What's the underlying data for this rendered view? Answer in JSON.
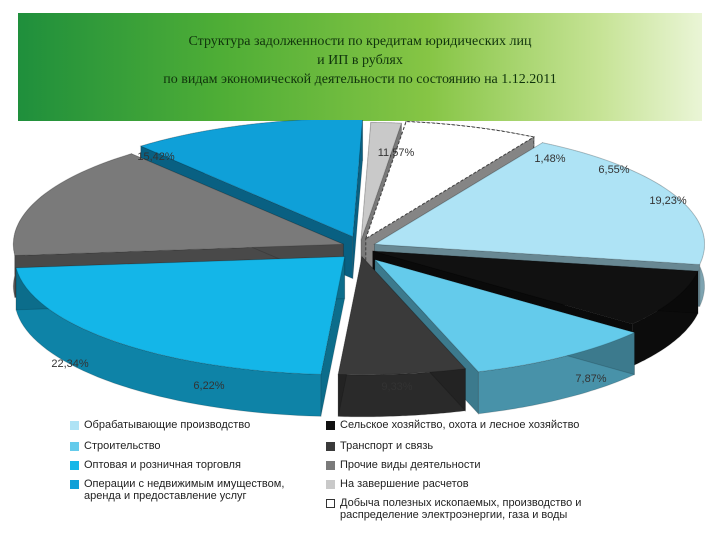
{
  "title_lines": [
    "Структура задолженности по кредитам  юридических  лиц",
    "и ИП в рублях",
    "по видам экономической деятельности по состоянию на 1.12.2011"
  ],
  "colors": {
    "banner": [
      "#1f8f3c",
      "#86c545",
      "#eaf5d6"
    ],
    "black": "#111111",
    "dark_gray": "#3a3a3a",
    "gray": "#7a7a7a",
    "white": "#ffffff",
    "light_gray": "#c9c9c9",
    "light_blue": "#aee3f5",
    "sky_blue": "#64cbeb",
    "cyan": "#14b6e8",
    "blue": "#0fa0d8"
  },
  "chart_data": {
    "type": "pie",
    "style": "3d-exploded",
    "legend_position": "bottom",
    "slices": [
      {
        "label": "Обрабатывающие производство",
        "value": 19.23,
        "value_label": "19,23%",
        "color": "#aee3f5"
      },
      {
        "label": "Сельское хозяйство, охота и лесное хозяйство",
        "value": 7.87,
        "value_label": "7,87%",
        "color": "#111111"
      },
      {
        "label": "Строительство",
        "value": 9.33,
        "value_label": "9,33%",
        "color": "#64cbeb"
      },
      {
        "label": "Транспорт и связь",
        "value": 6.22,
        "value_label": "6,22%",
        "color": "#3a3a3a"
      },
      {
        "label": "Оптовая и розничная торговля",
        "value": 22.34,
        "value_label": "22,34%",
        "color": "#14b6e8"
      },
      {
        "label": "Прочие виды деятельности",
        "value": 15.42,
        "value_label": "15,42%",
        "color": "#7a7a7a"
      },
      {
        "label": "Операции с недвижимым имуществом, аренда и предоставление услуг",
        "value": 11.57,
        "value_label": "11,57%",
        "color": "#0fa0d8"
      },
      {
        "label": "На завершение расчетов",
        "value": 1.48,
        "value_label": "1,48%",
        "color": "#c9c9c9"
      },
      {
        "label": "Добыча полезных ископаемых, производство и распределение электроэнергии, газа и воды",
        "value": 6.55,
        "value_label": "6,55%",
        "color": "#ffffff"
      }
    ]
  },
  "legend": {
    "left": [
      {
        "text": "Обрабатывающие производство",
        "color": "#aee3f5"
      },
      {
        "text": "Строительство",
        "color": "#64cbeb"
      },
      {
        "text": "Оптовая и розничная торговля",
        "color": "#14b6e8"
      },
      {
        "text": "Операции с недвижимым имуществом, аренда и предоставление услуг",
        "color": "#0fa0d8"
      }
    ],
    "right": [
      {
        "text": "Сельское хозяйство, охота и лесное хозяйство",
        "color": "#111111"
      },
      {
        "text": "Транспорт и связь",
        "color": "#3a3a3a"
      },
      {
        "text": "Прочие виды деятельности",
        "color": "#7a7a7a"
      },
      {
        "text": "На завершение расчетов",
        "color": "#c9c9c9"
      },
      {
        "text": "Добыча полезных ископаемых, производство и распределение электроэнергии, газа и воды",
        "color": "#ffffff"
      }
    ]
  }
}
